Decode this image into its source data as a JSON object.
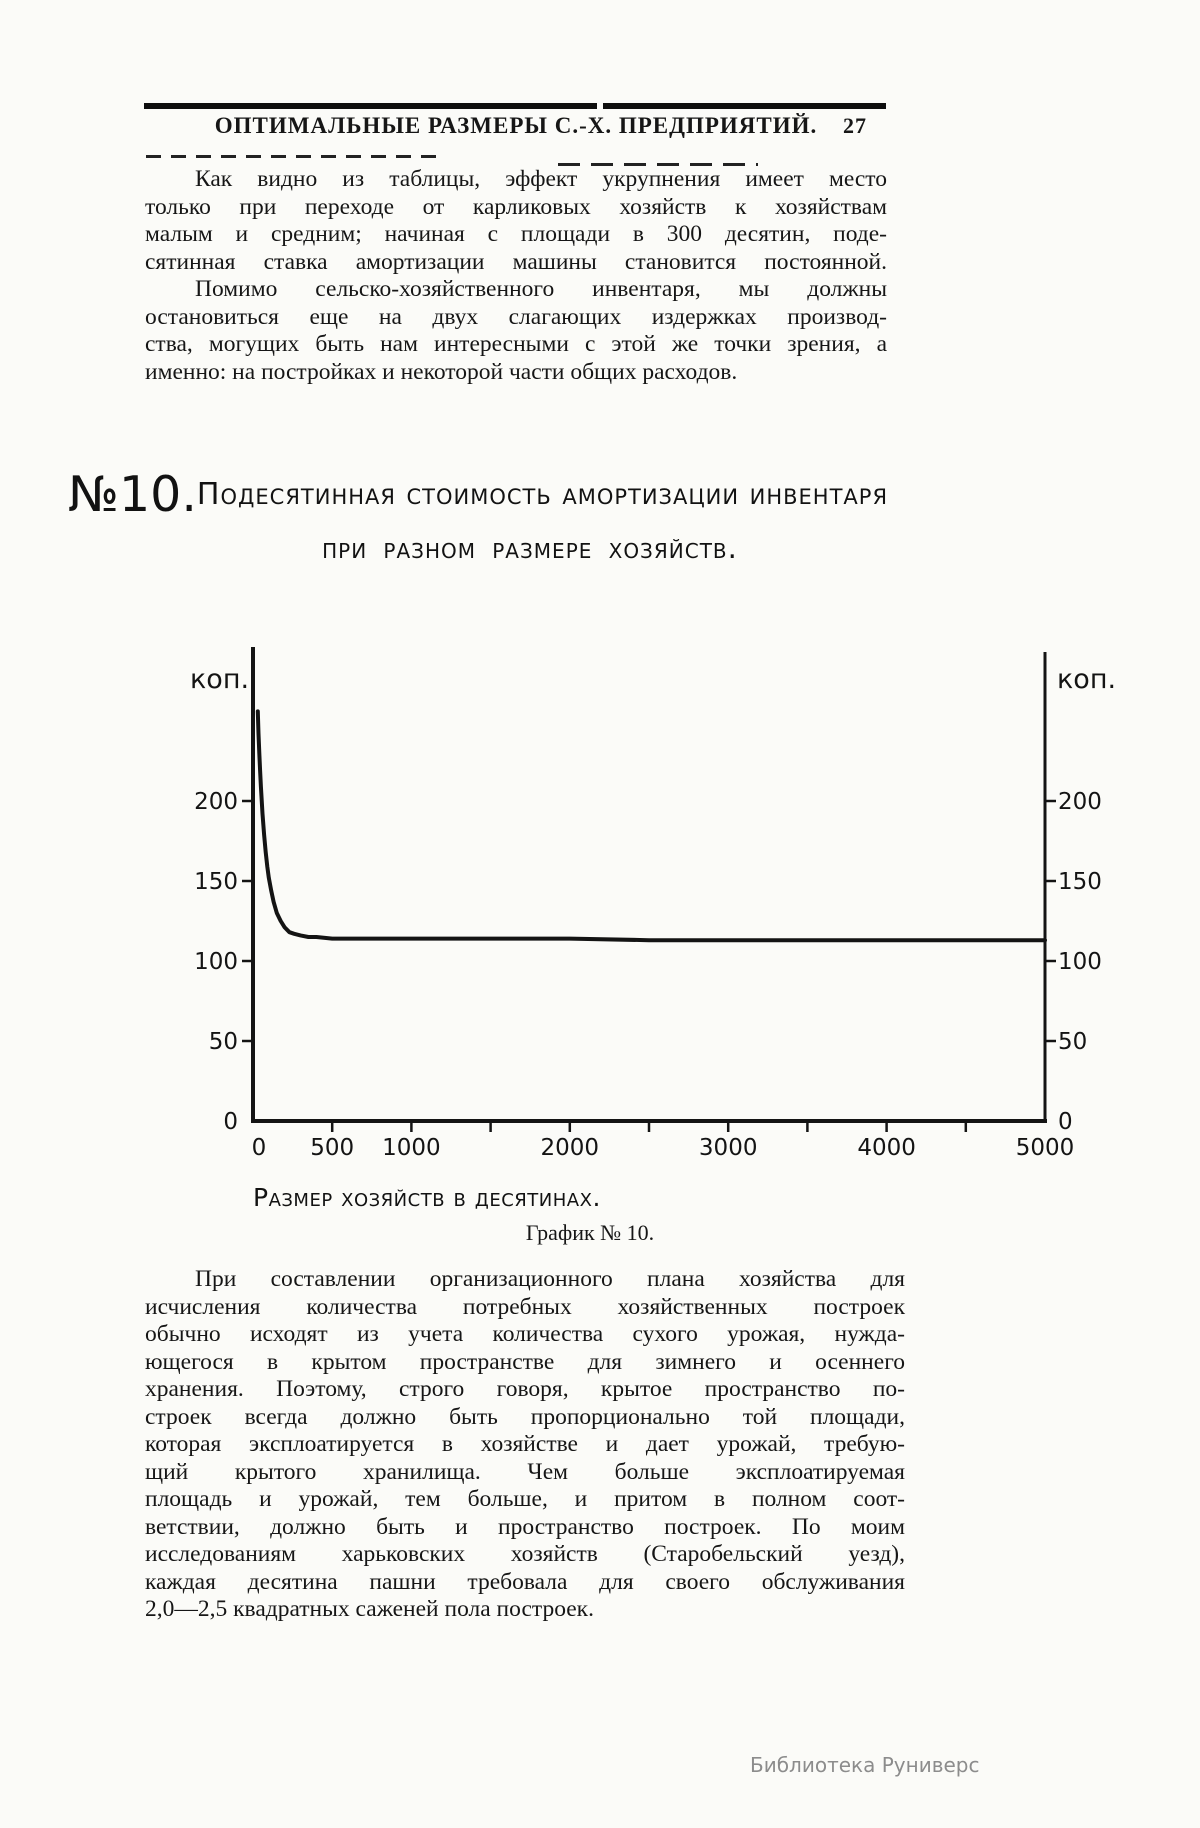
{
  "header": {
    "title": "ОПТИМАЛЬНЫЕ РАЗМЕРЫ С.-Х. ПРЕДПРИЯТИЙ.",
    "page_number": "27"
  },
  "paragraphs": {
    "para1": {
      "lines": [
        "Как видно из таблицы, эффект укрупнения имеет место",
        "только при переходе от карликовых хозяйств к хозяйствам",
        "малым и средним; начиная с площади в 300 десятин, поде-",
        "сятинная ставка амортизации машины становится постоянной."
      ]
    },
    "para2": {
      "lines": [
        "Помимо сельско-хозяйственного инвентаря, мы должны",
        "остановиться еще на двух слагающих издержках производ-",
        "ства, могущих быть нам интересными с этой же точки зрения, а",
        "именно: на постройках и некоторой части общих расходов."
      ]
    },
    "para3": {
      "lines": [
        "При составлении организационного плана хозяйства для",
        "исчисления количества потребных хозяйственных построек",
        "обычно исходят из учета количества сухого урожая, нужда-",
        "ющегося в крытом пространстве для зимнего и осеннего",
        "хранения. Поэтому, строго говоря, крытое пространство по-",
        "строек всегда должно быть пропорционально той площади,",
        "которая эксплоатируется в хозяйстве и дает урожай, требую-",
        "щий крытого хранилища. Чем больше эксплоатируемая",
        "площадь и урожай, тем больше, и притом в полном соот-",
        "ветствии, должно быть и пространство построек. По моим",
        "исследованиям харьковских хозяйств (Старобельский уезд),",
        "каждая десятина пашни требовала для своего обслуживания",
        "2,0—2,5 квадратных саженей пола построек."
      ]
    }
  },
  "figure": {
    "number": "№10.",
    "title_rest": "Подесятинная стоимость амортизации инвентаря",
    "title_line2": "при разном размере хозяйств.",
    "xaxis_label": "Размер хозяйств в десятинах.",
    "caption": "График № 10."
  },
  "footer": {
    "watermark": "Библиотека Руниверс"
  },
  "ink_color": "#141414",
  "chart_data": {
    "type": "line",
    "title": "№10. Подесятинная стоимость амортизации инвентаря при разном размере хозяйств.",
    "xlabel": "Размер хозяйств в десятинах.",
    "ylabel": "коп.",
    "caption": "График № 10.",
    "xlim": [
      0,
      5000
    ],
    "ylim": [
      0,
      300
    ],
    "x_ticks": [
      0,
      500,
      1000,
      2000,
      3000,
      4000,
      5000
    ],
    "x_minor_tick_step": 500,
    "y_ticks": [
      0,
      50,
      100,
      150,
      200
    ],
    "y_axis_on_both_sides": true,
    "grid": false,
    "legend_position": "none",
    "asymptote_kop": 113,
    "series": [
      {
        "name": "Подесятинная стоимость амортизации инвентаря (коп.)",
        "points": [
          [
            30,
            256
          ],
          [
            35,
            242
          ],
          [
            40,
            230
          ],
          [
            45,
            219
          ],
          [
            50,
            209
          ],
          [
            60,
            192
          ],
          [
            70,
            179
          ],
          [
            80,
            168
          ],
          [
            90,
            159
          ],
          [
            100,
            152
          ],
          [
            115,
            144
          ],
          [
            130,
            137
          ],
          [
            150,
            130
          ],
          [
            175,
            125
          ],
          [
            200,
            121
          ],
          [
            230,
            118
          ],
          [
            260,
            117
          ],
          [
            300,
            116
          ],
          [
            350,
            115
          ],
          [
            400,
            115
          ],
          [
            500,
            114
          ],
          [
            600,
            114
          ],
          [
            800,
            114
          ],
          [
            1000,
            114
          ],
          [
            1500,
            114
          ],
          [
            2000,
            114
          ],
          [
            2500,
            113
          ],
          [
            3000,
            113
          ],
          [
            3500,
            113
          ],
          [
            4000,
            113
          ],
          [
            4500,
            113
          ],
          [
            5000,
            113
          ]
        ]
      }
    ]
  }
}
